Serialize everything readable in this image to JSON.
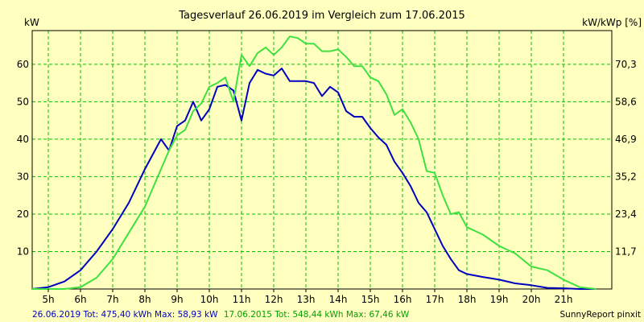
{
  "chart_data": {
    "type": "line",
    "title": "Tagesverlauf 26.06.2019 im Vergleich zum 17.06.2015",
    "ylabel_left": "kW",
    "ylabel_right": "kW/kWp [%]",
    "xlim": [
      4.5,
      22.5
    ],
    "ylim": [
      0,
      69
    ],
    "grid": true,
    "x_ticks": [
      {
        "value": 5,
        "label": "5h"
      },
      {
        "value": 6,
        "label": "6h"
      },
      {
        "value": 7,
        "label": "7h"
      },
      {
        "value": 8,
        "label": "8h"
      },
      {
        "value": 9,
        "label": "9h"
      },
      {
        "value": 10,
        "label": "10h"
      },
      {
        "value": 11,
        "label": "11h"
      },
      {
        "value": 12,
        "label": "12h"
      },
      {
        "value": 13,
        "label": "13h"
      },
      {
        "value": 14,
        "label": "14h"
      },
      {
        "value": 15,
        "label": "15h"
      },
      {
        "value": 16,
        "label": "16h"
      },
      {
        "value": 17,
        "label": "17h"
      },
      {
        "value": 18,
        "label": "18h"
      },
      {
        "value": 19,
        "label": "19h"
      },
      {
        "value": 20,
        "label": "20h"
      },
      {
        "value": 21,
        "label": "21h"
      }
    ],
    "y_ticks_left": [
      {
        "value": 10,
        "label": "10"
      },
      {
        "value": 20,
        "label": "20"
      },
      {
        "value": 30,
        "label": "30"
      },
      {
        "value": 40,
        "label": "40"
      },
      {
        "value": 50,
        "label": "50"
      },
      {
        "value": 60,
        "label": "60"
      }
    ],
    "y_ticks_right": [
      {
        "value": 10,
        "label": "11,7"
      },
      {
        "value": 20,
        "label": "23,4"
      },
      {
        "value": 30,
        "label": "35,2"
      },
      {
        "value": 40,
        "label": "46,9"
      },
      {
        "value": 50,
        "label": "58,6"
      },
      {
        "value": 60,
        "label": "70,3"
      }
    ],
    "series": [
      {
        "name": "26.06.2019",
        "color": "#0000c0",
        "x": [
          4.5,
          5.0,
          5.5,
          6.0,
          6.5,
          7.0,
          7.5,
          8.0,
          8.25,
          8.5,
          8.75,
          9.0,
          9.25,
          9.5,
          9.75,
          10.0,
          10.25,
          10.5,
          10.75,
          11.0,
          11.25,
          11.5,
          11.75,
          12.0,
          12.25,
          12.5,
          12.75,
          13.0,
          13.25,
          13.5,
          13.75,
          14.0,
          14.25,
          14.5,
          14.75,
          15.0,
          15.25,
          15.5,
          15.75,
          16.0,
          16.25,
          16.5,
          16.75,
          17.0,
          17.25,
          17.5,
          17.75,
          18.0,
          18.5,
          19.0,
          19.5,
          20.0,
          20.5,
          21.0,
          21.5,
          22.0
        ],
        "values": [
          0,
          0.5,
          2,
          5,
          10,
          16,
          23,
          32,
          36,
          40,
          37,
          43.5,
          45,
          50,
          45,
          48,
          54,
          54.5,
          53,
          45,
          55,
          58.5,
          57.5,
          57,
          58.9,
          55.5,
          55.5,
          55.5,
          55,
          51.5,
          54,
          52.5,
          47.5,
          46,
          46,
          43,
          40.5,
          38.5,
          34,
          31,
          27.5,
          23,
          20.5,
          16,
          11.5,
          8,
          5,
          4,
          3.2,
          2.5,
          1.5,
          1,
          0.3,
          0.2,
          0,
          0
        ]
      },
      {
        "name": "17.06.2015",
        "color": "#40e040",
        "x": [
          4.5,
          5.0,
          5.5,
          6.0,
          6.5,
          7.0,
          7.5,
          8.0,
          8.25,
          8.5,
          8.75,
          9.0,
          9.25,
          9.5,
          9.75,
          10.0,
          10.25,
          10.5,
          10.75,
          11.0,
          11.25,
          11.5,
          11.75,
          12.0,
          12.25,
          12.5,
          12.75,
          13.0,
          13.25,
          13.5,
          13.75,
          14.0,
          14.25,
          14.5,
          14.75,
          15.0,
          15.25,
          15.5,
          15.75,
          16.0,
          16.25,
          16.5,
          16.75,
          17.0,
          17.25,
          17.5,
          17.75,
          18.0,
          18.5,
          19.0,
          19.5,
          20.0,
          20.5,
          21.0,
          21.5,
          22.0
        ],
        "values": [
          0,
          0,
          0,
          0.5,
          3,
          8,
          15,
          22,
          27,
          32,
          37,
          41,
          42.5,
          47.5,
          49.5,
          54,
          55,
          56.5,
          50,
          62.5,
          59.5,
          63,
          64.5,
          62.5,
          64.5,
          67.46,
          67,
          65.5,
          65.5,
          63.5,
          63.5,
          64,
          62,
          59.5,
          59.5,
          56.5,
          55.5,
          52,
          46.5,
          48,
          44.5,
          40,
          31.5,
          31,
          25,
          20,
          20.5,
          16.5,
          14.5,
          11.5,
          9.5,
          6,
          5,
          2.5,
          0.5,
          0
        ]
      }
    ]
  },
  "footer": {
    "series1_text": "26.06.2019 Tot: 475,40 kWh Max: 58,93 kW",
    "series2_text": "17.06.2015 Tot: 548,44 kWh Max: 67,46 kW",
    "credit": "SunnyReport pinxit"
  },
  "colors": {
    "background": "#ffffc0",
    "grid": "#00c000",
    "axis": "#000000"
  }
}
